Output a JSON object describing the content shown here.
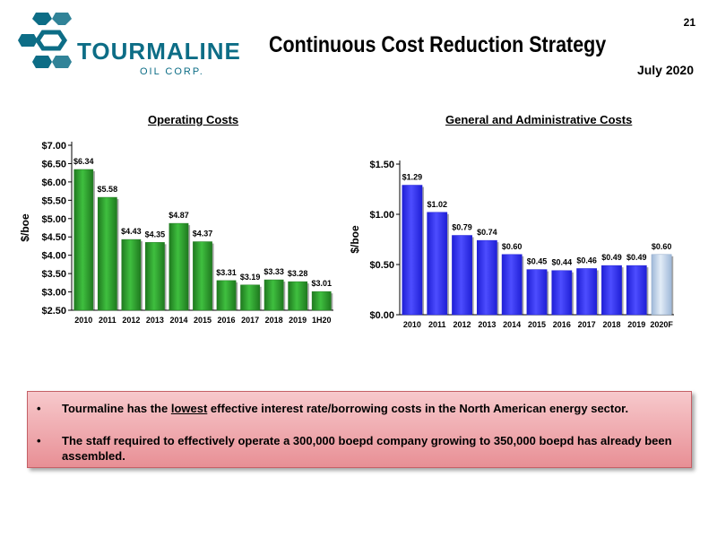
{
  "header": {
    "logo_word": "TOURMALINE",
    "logo_sub": "OIL CORP.",
    "page_number": "21",
    "title": "Continuous Cost Reduction Strategy",
    "date": "July 2020"
  },
  "colors": {
    "logo": "#0d6d86",
    "op_bar": "#1f7a1f",
    "ga_bar": "#1f1fd6",
    "ga_forecast_bar": "#bcd2ea",
    "callout": "#ef9aa0"
  },
  "chart_data": [
    {
      "type": "bar",
      "title": "Operating Costs",
      "ylabel": "$/boe",
      "categories": [
        "2010",
        "2011",
        "2012",
        "2013",
        "2014",
        "2015",
        "2016",
        "2017",
        "2018",
        "2019",
        "1H20"
      ],
      "values": [
        6.34,
        5.58,
        4.43,
        4.35,
        4.87,
        4.37,
        3.31,
        3.19,
        3.33,
        3.28,
        3.01
      ],
      "labels": [
        "$6.34",
        "$5.58",
        "$4.43",
        "$4.35",
        "$4.87",
        "$4.37",
        "$3.31",
        "$3.19",
        "$3.33",
        "$3.28",
        "$3.01"
      ],
      "ylim": [
        2.5,
        7.0
      ],
      "yticks": [
        2.5,
        3.0,
        3.5,
        4.0,
        4.5,
        5.0,
        5.5,
        6.0,
        6.5,
        7.0
      ],
      "ytick_labels": [
        "$2.50",
        "$3.00",
        "$3.50",
        "$4.00",
        "$4.50",
        "$5.00",
        "$5.50",
        "$6.00",
        "$6.50",
        "$7.00"
      ],
      "grid": false
    },
    {
      "type": "bar",
      "title": "General and Administrative Costs",
      "ylabel": "$/boe",
      "categories": [
        "2010",
        "2011",
        "2012",
        "2013",
        "2014",
        "2015",
        "2016",
        "2017",
        "2018",
        "2019",
        "2020F"
      ],
      "values": [
        1.29,
        1.02,
        0.79,
        0.74,
        0.6,
        0.45,
        0.44,
        0.46,
        0.49,
        0.49,
        0.6
      ],
      "labels": [
        "$1.29",
        "$1.02",
        "$0.79",
        "$0.74",
        "$0.60",
        "$0.45",
        "$0.44",
        "$0.46",
        "$0.49",
        "$0.49",
        "$0.60"
      ],
      "ylim": [
        0,
        1.5
      ],
      "yticks": [
        0,
        0.5,
        1.0,
        1.5
      ],
      "ytick_labels": [
        "$0.00",
        "$0.50",
        "$1.00",
        "$1.50"
      ],
      "forecast_category": "2020F",
      "grid": false
    }
  ],
  "callout": {
    "bullet": "•",
    "item1_pre": "Tourmaline has the ",
    "item1_emph": "lowest",
    "item1_post": " effective interest rate/borrowing costs in the North American energy sector.",
    "item2": "The staff required to effectively operate a 300,000 boepd company growing to 350,000 boepd has already been assembled."
  }
}
